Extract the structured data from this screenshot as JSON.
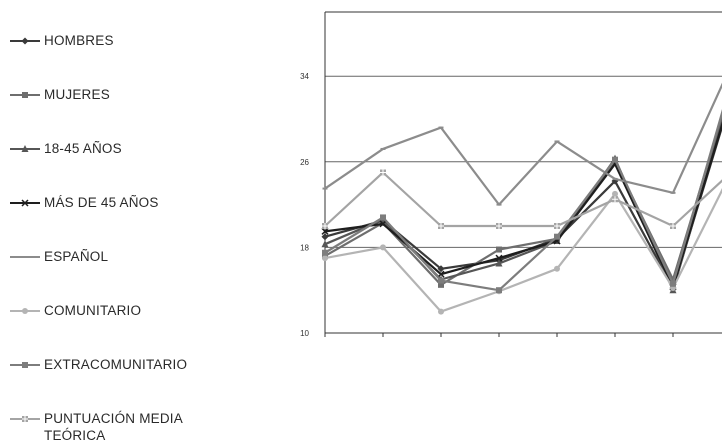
{
  "chart_data": {
    "type": "line",
    "title": "",
    "xlabel": "",
    "ylabel": "",
    "ylim": [
      10,
      40
    ],
    "yticks": [
      10,
      18,
      26,
      34
    ],
    "x": [
      1,
      2,
      3,
      4,
      5,
      6,
      7,
      8
    ],
    "grid": true,
    "legend_position": "left",
    "series": [
      {
        "name": "HOMBRES",
        "color": "#3a3a3a",
        "marker": "diamond",
        "values": [
          19.0,
          20.5,
          16.0,
          16.8,
          18.8,
          24.2,
          14.2,
          32.0
        ]
      },
      {
        "name": "MUJERES",
        "color": "#6e6e6e",
        "marker": "square",
        "values": [
          17.2,
          20.3,
          14.5,
          17.8,
          18.8,
          26.0,
          15.0,
          33.0
        ]
      },
      {
        "name": "18-45 AÑOS",
        "color": "#565656",
        "marker": "triangle",
        "values": [
          18.3,
          20.6,
          15.0,
          16.5,
          18.6,
          26.3,
          14.0,
          32.5
        ]
      },
      {
        "name": "MÁS DE 45 AÑOS",
        "color": "#1e1e1e",
        "marker": "star",
        "values": [
          19.5,
          20.2,
          15.5,
          17.0,
          18.6,
          25.8,
          14.3,
          32.2
        ]
      },
      {
        "name": "ESPAÑOL",
        "color": "#8c8c8c",
        "marker": "dash",
        "values": [
          23.5,
          27.2,
          29.2,
          22.0,
          27.9,
          24.4,
          23.1,
          35.0
        ]
      },
      {
        "name": "COMUNITARIO",
        "color": "#b4b4b4",
        "marker": "circle",
        "values": [
          17.0,
          18.0,
          12.0,
          13.9,
          16.0,
          23.0,
          14.2,
          25.0
        ]
      },
      {
        "name": "EXTRACOMUNITARIO",
        "color": "#7d7d7d",
        "marker": "square",
        "values": [
          17.5,
          20.8,
          14.9,
          14.0,
          19.0,
          26.2,
          14.6,
          33.5
        ]
      },
      {
        "name": "PUNTUACIÓN MEDIA TEÓRICA",
        "color": "#a4a4a4",
        "marker": "plus",
        "values": [
          20.0,
          25.0,
          20.0,
          20.0,
          20.0,
          22.5,
          20.0,
          25.0
        ]
      }
    ]
  }
}
